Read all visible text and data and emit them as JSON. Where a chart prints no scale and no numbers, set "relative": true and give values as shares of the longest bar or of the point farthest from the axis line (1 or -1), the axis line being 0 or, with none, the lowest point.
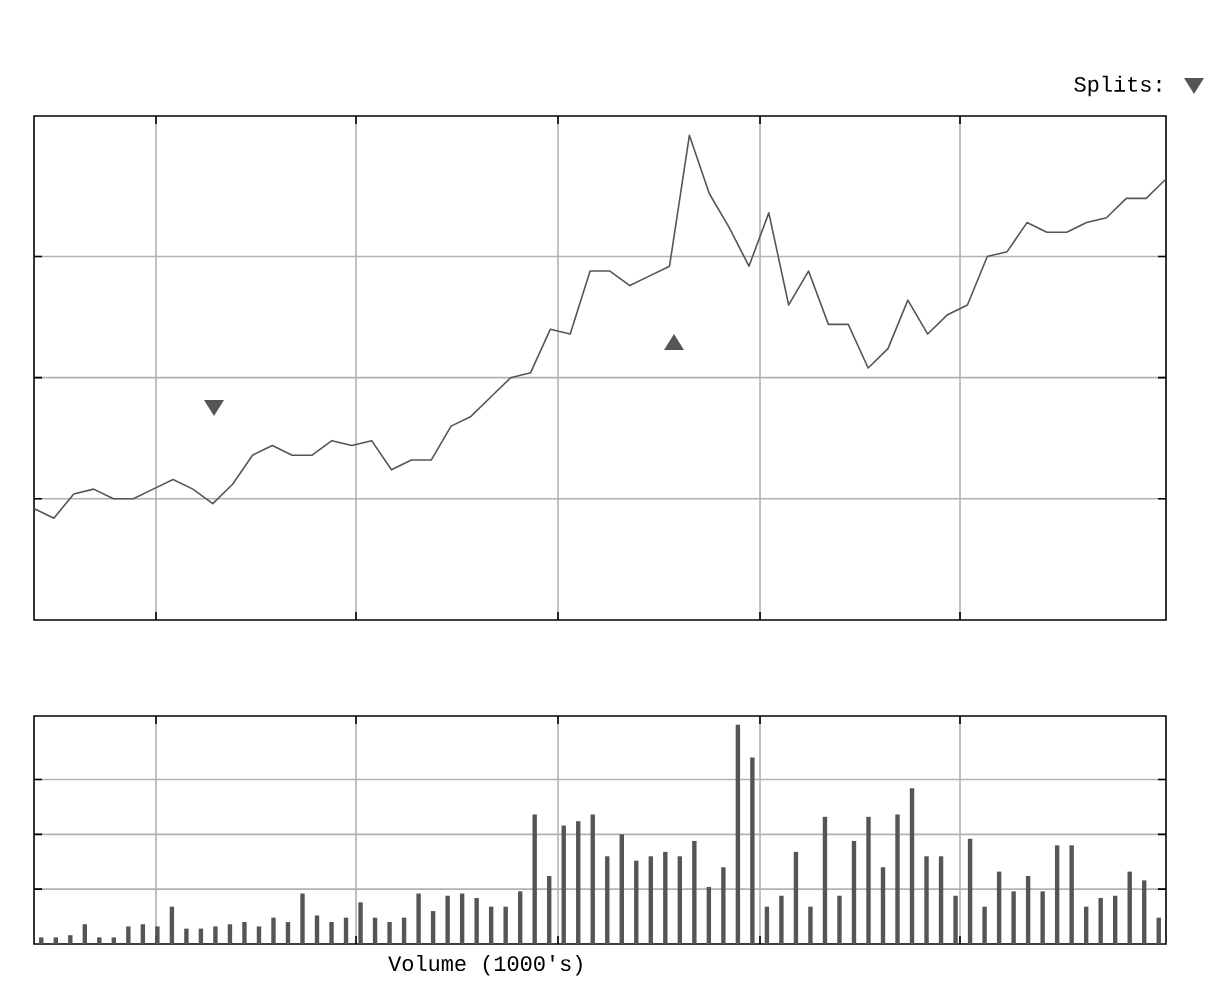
{
  "chart_data": [
    {
      "type": "line",
      "relative": true,
      "grid": true,
      "color": "#555555",
      "annotations": [
        "Splits:"
      ],
      "categories": [
        null,
        null,
        null,
        null,
        null,
        null,
        null,
        null,
        null,
        null,
        null,
        null,
        null,
        null,
        null,
        null,
        null,
        null,
        null,
        null,
        null,
        null,
        null,
        null,
        null,
        null,
        null,
        null,
        null,
        null,
        null,
        null,
        null,
        null,
        null,
        null,
        null,
        null,
        null,
        null,
        null,
        null,
        null,
        null,
        null,
        null,
        null,
        null,
        null,
        null,
        null,
        null,
        null,
        null,
        null,
        null,
        null,
        null
      ],
      "values": [
        0.23,
        0.21,
        0.26,
        0.27,
        0.25,
        0.25,
        0.27,
        0.29,
        0.27,
        0.24,
        0.28,
        0.34,
        0.36,
        0.34,
        0.34,
        0.37,
        0.36,
        0.37,
        0.31,
        0.33,
        0.33,
        0.4,
        0.42,
        0.46,
        0.5,
        0.51,
        0.6,
        0.59,
        0.72,
        0.72,
        0.69,
        0.71,
        0.73,
        1.0,
        0.88,
        0.81,
        0.73,
        0.84,
        0.65,
        0.72,
        0.61,
        0.61,
        0.52,
        0.56,
        0.66,
        0.59,
        0.63,
        0.65,
        0.75,
        0.76,
        0.82,
        0.8,
        0.8,
        0.82,
        0.83,
        0.87,
        0.87,
        0.91
      ]
    },
    {
      "type": "bar",
      "relative": true,
      "grid": true,
      "color": "#555555",
      "xlabel": "Volume (1000's)",
      "categories": [
        null,
        null,
        null,
        null,
        null,
        null,
        null,
        null,
        null,
        null,
        null,
        null,
        null,
        null,
        null,
        null,
        null,
        null,
        null,
        null,
        null,
        null,
        null,
        null,
        null,
        null,
        null,
        null,
        null,
        null,
        null,
        null,
        null,
        null,
        null,
        null,
        null,
        null,
        null,
        null,
        null,
        null,
        null,
        null,
        null,
        null,
        null,
        null,
        null,
        null,
        null,
        null,
        null,
        null,
        null,
        null,
        null,
        null,
        null,
        null,
        null,
        null,
        null,
        null,
        null,
        null,
        null,
        null,
        null,
        null,
        null,
        null,
        null,
        null,
        null,
        null,
        null,
        null
      ],
      "values": [
        0.03,
        0.03,
        0.04,
        0.09,
        0.03,
        0.03,
        0.08,
        0.09,
        0.08,
        0.17,
        0.07,
        0.07,
        0.08,
        0.09,
        0.1,
        0.08,
        0.12,
        0.1,
        0.23,
        0.13,
        0.1,
        0.12,
        0.19,
        0.12,
        0.1,
        0.12,
        0.23,
        0.15,
        0.22,
        0.23,
        0.21,
        0.17,
        0.17,
        0.24,
        0.59,
        0.31,
        0.54,
        0.56,
        0.59,
        0.4,
        0.5,
        0.38,
        0.4,
        0.42,
        0.4,
        0.47,
        0.26,
        0.35,
        1.0,
        0.85,
        0.17,
        0.22,
        0.42,
        0.17,
        0.58,
        0.22,
        0.47,
        0.58,
        0.35,
        0.59,
        0.71,
        0.4,
        0.4,
        0.22,
        0.48,
        0.17,
        0.33,
        0.24,
        0.31,
        0.24,
        0.45,
        0.45,
        0.17,
        0.21,
        0.22,
        0.33,
        0.29,
        0.12
      ]
    }
  ]
}
